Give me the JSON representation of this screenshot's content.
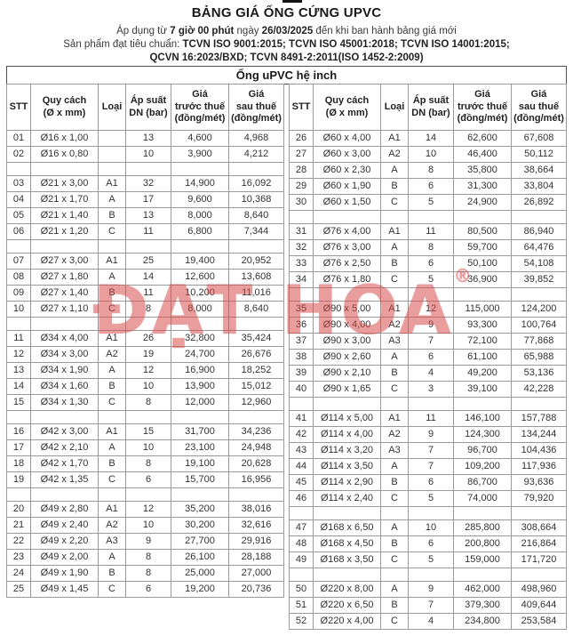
{
  "header": {
    "title": "BẢNG GIÁ ỐNG CỨNG UPVC",
    "applied_line": [
      {
        "t": "Áp dụng từ ",
        "b": false
      },
      {
        "t": "7 giờ 00 phút",
        "b": true
      },
      {
        "t": " ngày ",
        "b": false
      },
      {
        "t": "26/03/2025",
        "b": true
      },
      {
        "t": " đến khi ban hành bảng giá mới",
        "b": false
      }
    ],
    "standards_line1": [
      {
        "t": "Sản phẩm đạt tiêu chuẩn: ",
        "b": false
      },
      {
        "t": "TCVN ISO 9001:2015; TCVN ISO 45001:2018; TCVN ISO 14001:2015;",
        "b": true
      }
    ],
    "standards_line2": "QCVN 16:2023/BXD; TCVN 8491-2:2011(ISO 1452-2:2009)"
  },
  "watermark": {
    "text": "ĐẠT HOA",
    "registered": "®",
    "color": "#d84545"
  },
  "table": {
    "caption": "Ống uPVC hệ inch",
    "columns": {
      "stt": "STT",
      "size": "Quy cách\n(Ø x mm)",
      "type": "Loại",
      "dn": "Áp suất\nDN (bar)",
      "pre": "Giá\ntrước thuế\n(đồng/mét)",
      "post": "Giá\nsau thuế\n(đồng/mét)"
    },
    "left_rows": [
      {
        "stt": "01",
        "size": "Ø16 x 1,00",
        "type": "",
        "dn": "13",
        "pre": "4,600",
        "post": "4,968"
      },
      {
        "stt": "02",
        "size": "Ø16 x 0,80",
        "type": "",
        "dn": "10",
        "pre": "3,900",
        "post": "4,212"
      },
      {
        "spacer": true
      },
      {
        "stt": "03",
        "size": "Ø21 x 3,00",
        "type": "A1",
        "dn": "32",
        "pre": "14,900",
        "post": "16,092"
      },
      {
        "stt": "04",
        "size": "Ø21 x 1,70",
        "type": "A",
        "dn": "17",
        "pre": "9,600",
        "post": "10,368"
      },
      {
        "stt": "05",
        "size": "Ø21 x 1,40",
        "type": "B",
        "dn": "13",
        "pre": "8,000",
        "post": "8,640"
      },
      {
        "stt": "06",
        "size": "Ø21 x 1,20",
        "type": "C",
        "dn": "11",
        "pre": "6,800",
        "post": "7,344"
      },
      {
        "spacer": true
      },
      {
        "stt": "07",
        "size": "Ø27 x 3,00",
        "type": "A1",
        "dn": "25",
        "pre": "19,400",
        "post": "20,952"
      },
      {
        "stt": "08",
        "size": "Ø27 x 1,80",
        "type": "A",
        "dn": "14",
        "pre": "12,600",
        "post": "13,608"
      },
      {
        "stt": "09",
        "size": "Ø27 x 1,40",
        "type": "B",
        "dn": "11",
        "pre": "10,200",
        "post": "11,016"
      },
      {
        "stt": "10",
        "size": "Ø27 x 1,10",
        "type": "C",
        "dn": "8",
        "pre": "8,000",
        "post": "8,640"
      },
      {
        "spacer": true
      },
      {
        "stt": "11",
        "size": "Ø34 x 4,00",
        "type": "A1",
        "dn": "26",
        "pre": "32,800",
        "post": "35,424"
      },
      {
        "stt": "12",
        "size": "Ø34 x 3,00",
        "type": "A2",
        "dn": "19",
        "pre": "24,700",
        "post": "26,676"
      },
      {
        "stt": "13",
        "size": "Ø34 x 1,90",
        "type": "A",
        "dn": "12",
        "pre": "16,900",
        "post": "18,252"
      },
      {
        "stt": "14",
        "size": "Ø34 x 1,60",
        "type": "B",
        "dn": "10",
        "pre": "13,900",
        "post": "15,012"
      },
      {
        "stt": "15",
        "size": "Ø34 x 1,30",
        "type": "C",
        "dn": "8",
        "pre": "12,000",
        "post": "12,960"
      },
      {
        "spacer": true
      },
      {
        "stt": "16",
        "size": "Ø42 x 3,00",
        "type": "A1",
        "dn": "15",
        "pre": "31,700",
        "post": "34,236"
      },
      {
        "stt": "17",
        "size": "Ø42 x 2,10",
        "type": "A",
        "dn": "10",
        "pre": "23,100",
        "post": "24,948"
      },
      {
        "stt": "18",
        "size": "Ø42 x 1,70",
        "type": "B",
        "dn": "8",
        "pre": "19,100",
        "post": "20,628"
      },
      {
        "stt": "19",
        "size": "Ø42 x 1,35",
        "type": "C",
        "dn": "6",
        "pre": "15,700",
        "post": "16,956"
      },
      {
        "spacer": true
      },
      {
        "stt": "20",
        "size": "Ø49 x 2,80",
        "type": "A1",
        "dn": "12",
        "pre": "35,200",
        "post": "38,016"
      },
      {
        "stt": "21",
        "size": "Ø49 x 2,40",
        "type": "A2",
        "dn": "10",
        "pre": "30,200",
        "post": "32,616"
      },
      {
        "stt": "22",
        "size": "Ø49 x 2,20",
        "type": "A3",
        "dn": "9",
        "pre": "27,700",
        "post": "29,916"
      },
      {
        "stt": "23",
        "size": "Ø49 x 2,00",
        "type": "A",
        "dn": "8",
        "pre": "26,100",
        "post": "28,188"
      },
      {
        "stt": "24",
        "size": "Ø49 x 1,90",
        "type": "B",
        "dn": "8",
        "pre": "25,000",
        "post": "27,000"
      },
      {
        "stt": "25",
        "size": "Ø49 x 1,45",
        "type": "C",
        "dn": "6",
        "pre": "19,200",
        "post": "20,736"
      }
    ],
    "right_rows": [
      {
        "stt": "26",
        "size": "Ø60 x 4,00",
        "type": "A1",
        "dn": "14",
        "pre": "62,600",
        "post": "67,608"
      },
      {
        "stt": "27",
        "size": "Ø60 x 3,00",
        "type": "A2",
        "dn": "10",
        "pre": "46,400",
        "post": "50,112"
      },
      {
        "stt": "28",
        "size": "Ø60 x 2,30",
        "type": "A",
        "dn": "8",
        "pre": "35,800",
        "post": "38,664"
      },
      {
        "stt": "29",
        "size": "Ø60 x 1,90",
        "type": "B",
        "dn": "6",
        "pre": "31,300",
        "post": "33,804"
      },
      {
        "stt": "30",
        "size": "Ø60 x 1,50",
        "type": "C",
        "dn": "5",
        "pre": "24,900",
        "post": "26,892"
      },
      {
        "spacer": true
      },
      {
        "stt": "31",
        "size": "Ø76 x 4,00",
        "type": "A1",
        "dn": "11",
        "pre": "80,500",
        "post": "86,940"
      },
      {
        "stt": "32",
        "size": "Ø76 x 3,00",
        "type": "A",
        "dn": "8",
        "pre": "59,700",
        "post": "64,476"
      },
      {
        "stt": "33",
        "size": "Ø76 x 2,50",
        "type": "B",
        "dn": "6",
        "pre": "50,100",
        "post": "54,108"
      },
      {
        "stt": "34",
        "size": "Ø76 x 1,80",
        "type": "C",
        "dn": "5",
        "pre": "36,900",
        "post": "39,852"
      },
      {
        "spacer": true
      },
      {
        "stt": "35",
        "size": "Ø90 x 5,00",
        "type": "A1",
        "dn": "12",
        "pre": "115,000",
        "post": "124,200"
      },
      {
        "stt": "36",
        "size": "Ø90 x 4,00",
        "type": "A2",
        "dn": "9",
        "pre": "93,300",
        "post": "100,764"
      },
      {
        "stt": "37",
        "size": "Ø90 x 3,00",
        "type": "A3",
        "dn": "7",
        "pre": "72,100",
        "post": "77,868"
      },
      {
        "stt": "38",
        "size": "Ø90 x 2,60",
        "type": "A",
        "dn": "6",
        "pre": "61,100",
        "post": "65,988"
      },
      {
        "stt": "39",
        "size": "Ø90 x 2,10",
        "type": "B",
        "dn": "4",
        "pre": "49,200",
        "post": "53,136"
      },
      {
        "stt": "40",
        "size": "Ø90 x 1,65",
        "type": "C",
        "dn": "3",
        "pre": "39,100",
        "post": "42,228"
      },
      {
        "spacer": true
      },
      {
        "stt": "41",
        "size": "Ø114 x 5,00",
        "type": "A1",
        "dn": "11",
        "pre": "146,100",
        "post": "157,788"
      },
      {
        "stt": "42",
        "size": "Ø114 x 4,00",
        "type": "A2",
        "dn": "9",
        "pre": "124,300",
        "post": "134,244"
      },
      {
        "stt": "43",
        "size": "Ø114 x 3,20",
        "type": "A3",
        "dn": "7",
        "pre": "96,700",
        "post": "104,436"
      },
      {
        "stt": "44",
        "size": "Ø114 x 3,50",
        "type": "A",
        "dn": "7",
        "pre": "109,200",
        "post": "117,936"
      },
      {
        "stt": "45",
        "size": "Ø114 x 2,90",
        "type": "B",
        "dn": "6",
        "pre": "86,700",
        "post": "93,636"
      },
      {
        "stt": "46",
        "size": "Ø114 x 2,40",
        "type": "C",
        "dn": "5",
        "pre": "74,000",
        "post": "79,920"
      },
      {
        "spacer": true
      },
      {
        "stt": "47",
        "size": "Ø168 x 6,50",
        "type": "A",
        "dn": "10",
        "pre": "285,800",
        "post": "308,664"
      },
      {
        "stt": "48",
        "size": "Ø168 x 4,50",
        "type": "B",
        "dn": "6",
        "pre": "200,800",
        "post": "216,864"
      },
      {
        "stt": "49",
        "size": "Ø168 x 3,50",
        "type": "C",
        "dn": "5",
        "pre": "159,000",
        "post": "171,720"
      },
      {
        "spacer": true
      },
      {
        "stt": "50",
        "size": "Ø220 x 8,00",
        "type": "A",
        "dn": "9",
        "pre": "462,000",
        "post": "498,960"
      },
      {
        "stt": "51",
        "size": "Ø220 x 6,50",
        "type": "B",
        "dn": "7",
        "pre": "379,300",
        "post": "409,644"
      },
      {
        "stt": "52",
        "size": "Ø220 x 4,00",
        "type": "C",
        "dn": "4",
        "pre": "234,800",
        "post": "253,584"
      }
    ]
  }
}
